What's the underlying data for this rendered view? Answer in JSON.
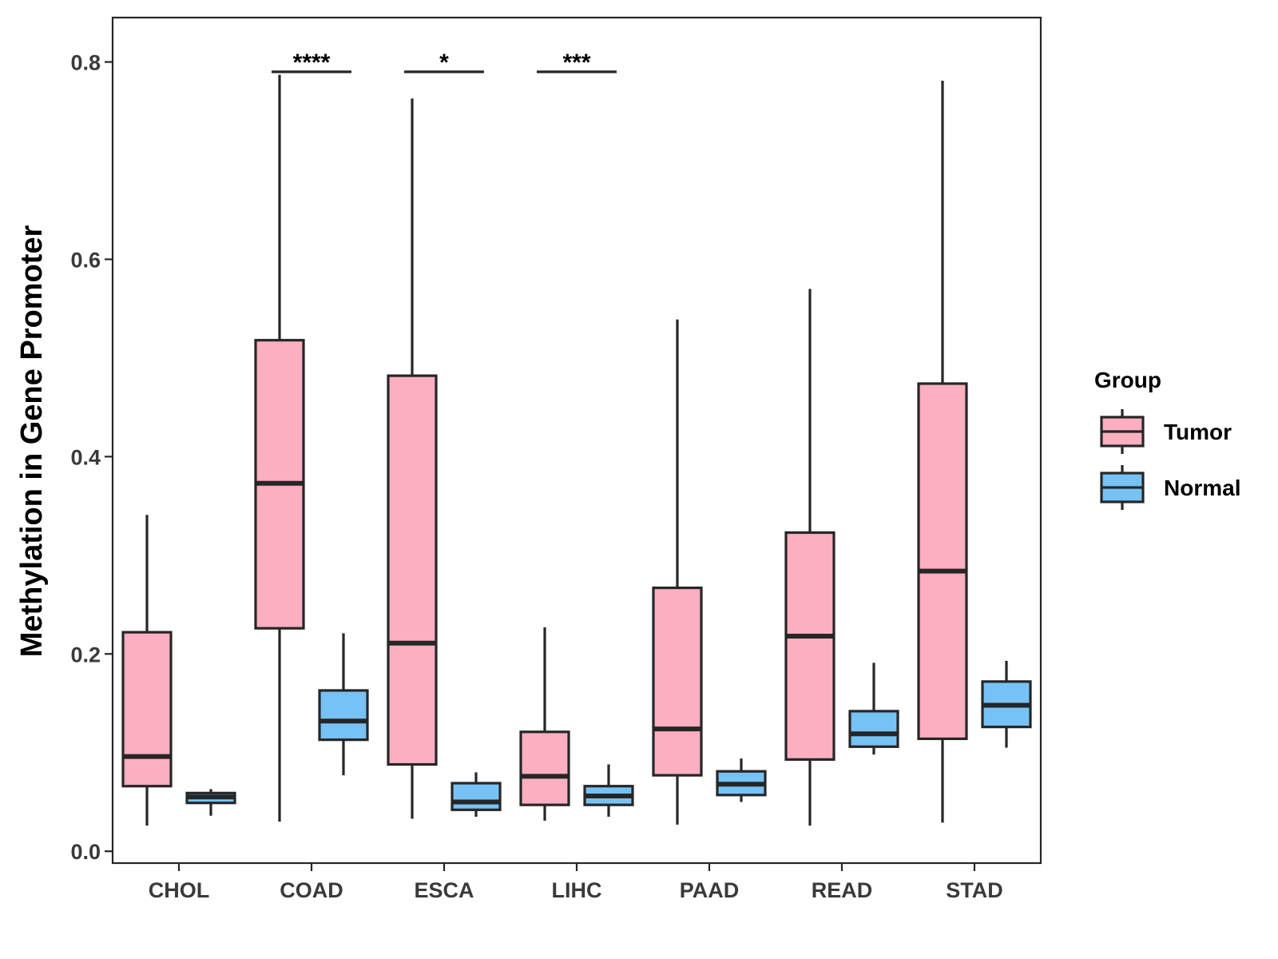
{
  "chart_data": {
    "type": "boxplot",
    "title": "",
    "xlabel": "",
    "ylabel": "Methylation in Gene Promoter",
    "ylim": [
      -0.012,
      0.845
    ],
    "yticks": [
      0.0,
      0.2,
      0.4,
      0.6,
      0.8
    ],
    "ytick_labels": [
      "0.0",
      "0.2",
      "0.4",
      "0.6",
      "0.8"
    ],
    "categories": [
      "CHOL",
      "COAD",
      "ESCA",
      "LIHC",
      "PAAD",
      "READ",
      "STAD"
    ],
    "grid": false,
    "legend": {
      "title": "Group",
      "position": "right",
      "entries": [
        "Tumor",
        "Normal"
      ]
    },
    "series": [
      {
        "name": "Tumor",
        "color": "#FBAFC1",
        "boxes": [
          {
            "min": 0.026,
            "q1": 0.066,
            "median": 0.096,
            "q3": 0.222,
            "max": 0.341
          },
          {
            "min": 0.03,
            "q1": 0.226,
            "median": 0.373,
            "q3": 0.518,
            "max": 0.787
          },
          {
            "min": 0.033,
            "q1": 0.088,
            "median": 0.211,
            "q3": 0.482,
            "max": 0.763
          },
          {
            "min": 0.031,
            "q1": 0.047,
            "median": 0.076,
            "q3": 0.121,
            "max": 0.227
          },
          {
            "min": 0.027,
            "q1": 0.077,
            "median": 0.124,
            "q3": 0.267,
            "max": 0.539
          },
          {
            "min": 0.026,
            "q1": 0.093,
            "median": 0.218,
            "q3": 0.323,
            "max": 0.57
          },
          {
            "min": 0.029,
            "q1": 0.114,
            "median": 0.284,
            "q3": 0.474,
            "max": 0.781
          }
        ]
      },
      {
        "name": "Normal",
        "color": "#77C2F5",
        "boxes": [
          {
            "min": 0.036,
            "q1": 0.049,
            "median": 0.055,
            "q3": 0.059,
            "max": 0.063
          },
          {
            "min": 0.077,
            "q1": 0.113,
            "median": 0.132,
            "q3": 0.163,
            "max": 0.221
          },
          {
            "min": 0.035,
            "q1": 0.042,
            "median": 0.05,
            "q3": 0.069,
            "max": 0.08
          },
          {
            "min": 0.035,
            "q1": 0.047,
            "median": 0.056,
            "q3": 0.066,
            "max": 0.088
          },
          {
            "min": 0.05,
            "q1": 0.057,
            "median": 0.068,
            "q3": 0.081,
            "max": 0.094
          },
          {
            "min": 0.098,
            "q1": 0.106,
            "median": 0.119,
            "q3": 0.142,
            "max": 0.191
          },
          {
            "min": 0.105,
            "q1": 0.126,
            "median": 0.148,
            "q3": 0.172,
            "max": 0.193
          }
        ]
      }
    ],
    "significance": [
      {
        "category": "COAD",
        "label": "****",
        "y": 0.79
      },
      {
        "category": "ESCA",
        "label": "*",
        "y": 0.79
      },
      {
        "category": "LIHC",
        "label": "***",
        "y": 0.79
      }
    ]
  }
}
